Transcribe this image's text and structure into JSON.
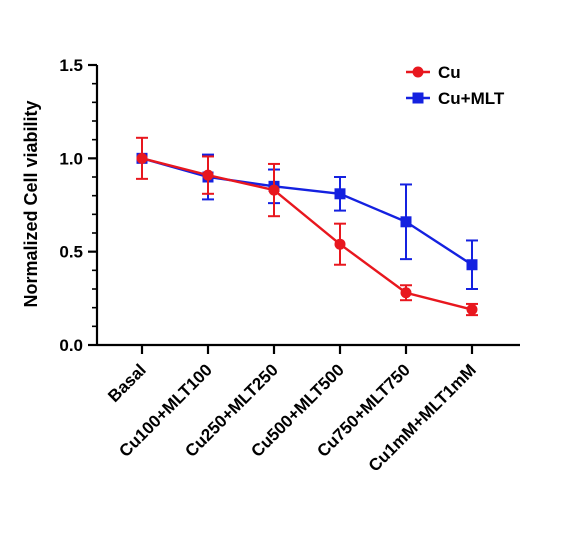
{
  "chart_data": {
    "type": "line",
    "title": "",
    "xlabel": "",
    "ylabel": "Normalized Cell viability",
    "ylim": [
      0,
      1.5
    ],
    "yticks": [
      "0.0",
      "0.5",
      "1.0",
      "1.5"
    ],
    "categories": [
      "Basal",
      "Cu100+MLT100",
      "Cu250+MLT250",
      "Cu500+MLT500",
      "Cu750+MLT750",
      "Cu1mM+MLT1mM"
    ],
    "series": [
      {
        "name": "Cu",
        "color": "#e8171e",
        "marker": "circle",
        "values": [
          1.0,
          0.91,
          0.83,
          0.54,
          0.28,
          0.19
        ],
        "errors": [
          0.11,
          0.1,
          0.14,
          0.11,
          0.04,
          0.03
        ]
      },
      {
        "name": "Cu+MLT",
        "color": "#1421e0",
        "marker": "square",
        "values": [
          1.0,
          0.9,
          0.85,
          0.81,
          0.66,
          0.43
        ],
        "errors": [
          0.0,
          0.12,
          0.09,
          0.09,
          0.2,
          0.13
        ]
      }
    ],
    "legend_position": "top-right",
    "grid": false
  }
}
